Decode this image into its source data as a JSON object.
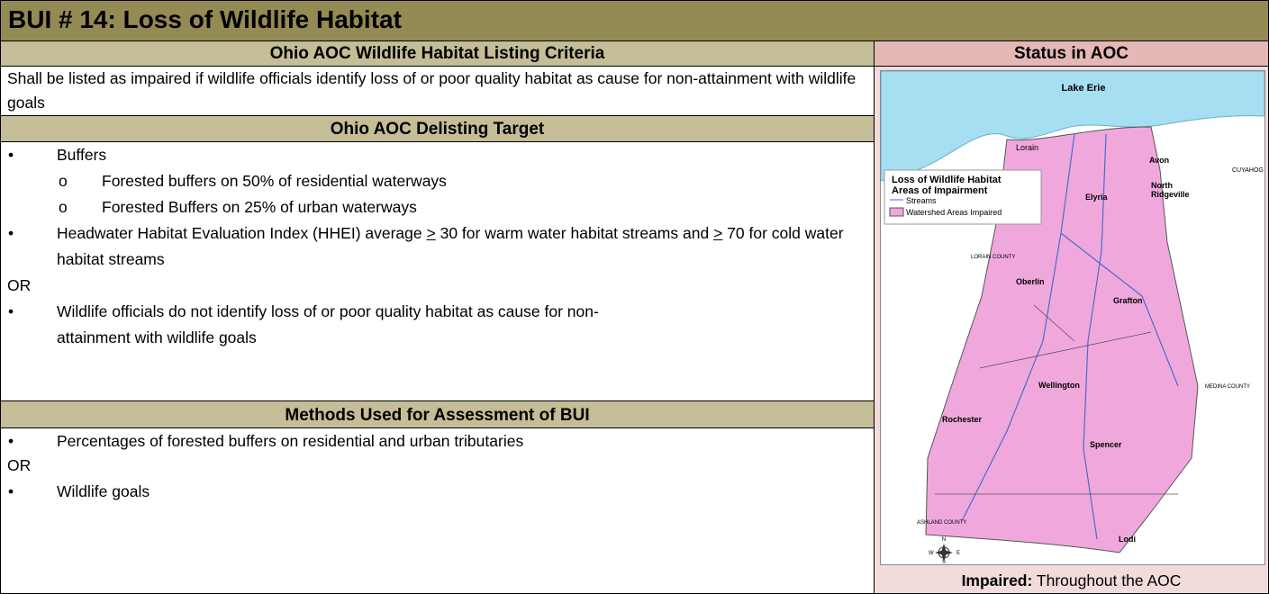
{
  "title": "BUI # 14: Loss of Wildlife Habitat",
  "criteria": {
    "header": "Ohio AOC Wildlife Habitat Listing Criteria",
    "text": "Shall be listed as impaired if wildlife officials identify loss of or poor quality habitat as cause for non-attainment with wildlife goals"
  },
  "status": {
    "header": "Status in AOC",
    "caption_label": "Impaired:",
    "caption_text": "Throughout the AOC"
  },
  "delisting": {
    "header": "Ohio AOC Delisting Target",
    "buffers": "Buffers",
    "buffer_items": [
      "Forested buffers on 50% of residential waterways",
      "Forested Buffers on 25% of urban waterways"
    ],
    "hhei": [
      "Headwater Habitat Evaluation Index (HHEI) average ",
      ">",
      " 30 for warm water habitat streams and ",
      ">",
      " 70 for cold water habitat streams"
    ],
    "or": "OR",
    "officials": "Wildlife officials do not identify loss of or poor quality habitat as cause for non-attainment with wildlife goals"
  },
  "methods": {
    "header": "Methods Used for Assessment of BUI",
    "items": [
      "Percentages of forested buffers on residential and urban tributaries",
      "Wildlife goals"
    ],
    "or": "OR"
  },
  "map": {
    "lake": "Lake Erie",
    "legend": [
      "Loss of Wildlife Habitat",
      "Areas of Impairment",
      "Streams",
      "Watershed Areas Impaired"
    ],
    "places": [
      "Lorain",
      "Avon",
      "CUYAHOG",
      "North",
      "Ridgeville",
      "Elyria",
      "LORAIN COUNTY",
      "Oberlin",
      "Grafton",
      "Wellington",
      "MEDINA COUNTY",
      "Rochester",
      "Spencer",
      "ASHLAND COUNTY",
      "Lodi"
    ],
    "compass": [
      "N",
      "E",
      "S",
      "W"
    ]
  }
}
